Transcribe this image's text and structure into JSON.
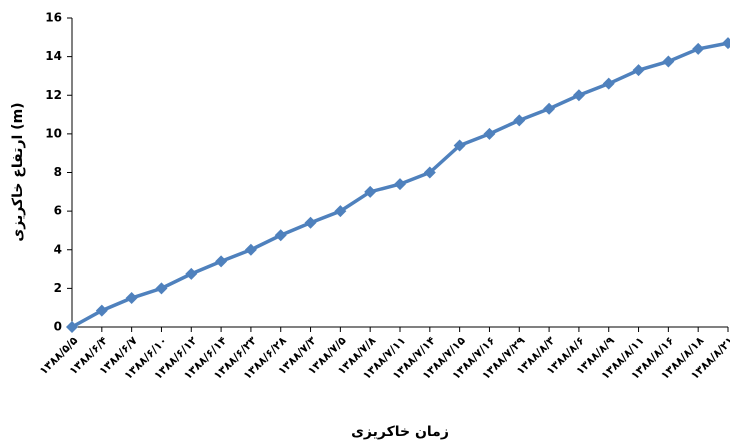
{
  "chart_data": {
    "type": "line",
    "x_label": "زمان خاکریزی",
    "y_label": "ارتفاع خاکریزی (m)",
    "categories": [
      "۱۳۸۸/۵/۵",
      "۱۳۸۸/۶/۴",
      "۱۳۸۸/۶/۷",
      "۱۳۸۸/۶/۱۰",
      "۱۳۸۸/۶/۱۲",
      "۱۳۸۸/۶/۱۴",
      "۱۳۸۸/۶/۲۳",
      "۱۳۸۸/۶/۲۸",
      "۱۳۸۸/۷/۳",
      "۱۳۸۸/۷/۵",
      "۱۳۸۸/۷/۸",
      "۱۳۸۸/۷/۱۱",
      "۱۳۸۸/۷/۱۴",
      "۱۳۸۸/۷/۱۵",
      "۱۳۸۸/۷/۱۶",
      "۱۳۸۸/۷/۲۹",
      "۱۳۸۸/۸/۳",
      "۱۳۸۸/۸/۶",
      "۱۳۸۸/۸/۹",
      "۱۳۸۸/۸/۱۱",
      "۱۳۸۸/۸/۱۶",
      "۱۳۸۸/۸/۱۸",
      "۱۳۸۸/۸/۲۱"
    ],
    "values": [
      0,
      0.85,
      1.5,
      2.0,
      2.75,
      3.4,
      4.0,
      4.75,
      5.4,
      6.0,
      7.0,
      7.4,
      8.0,
      9.4,
      10.0,
      10.7,
      11.3,
      12.0,
      12.6,
      13.3,
      13.75,
      14.4,
      14.7
    ],
    "color": "#4f81bd",
    "ylim": [
      0,
      16
    ],
    "yticks": [
      0,
      2,
      4,
      6,
      8,
      10,
      12,
      14,
      16
    ]
  }
}
